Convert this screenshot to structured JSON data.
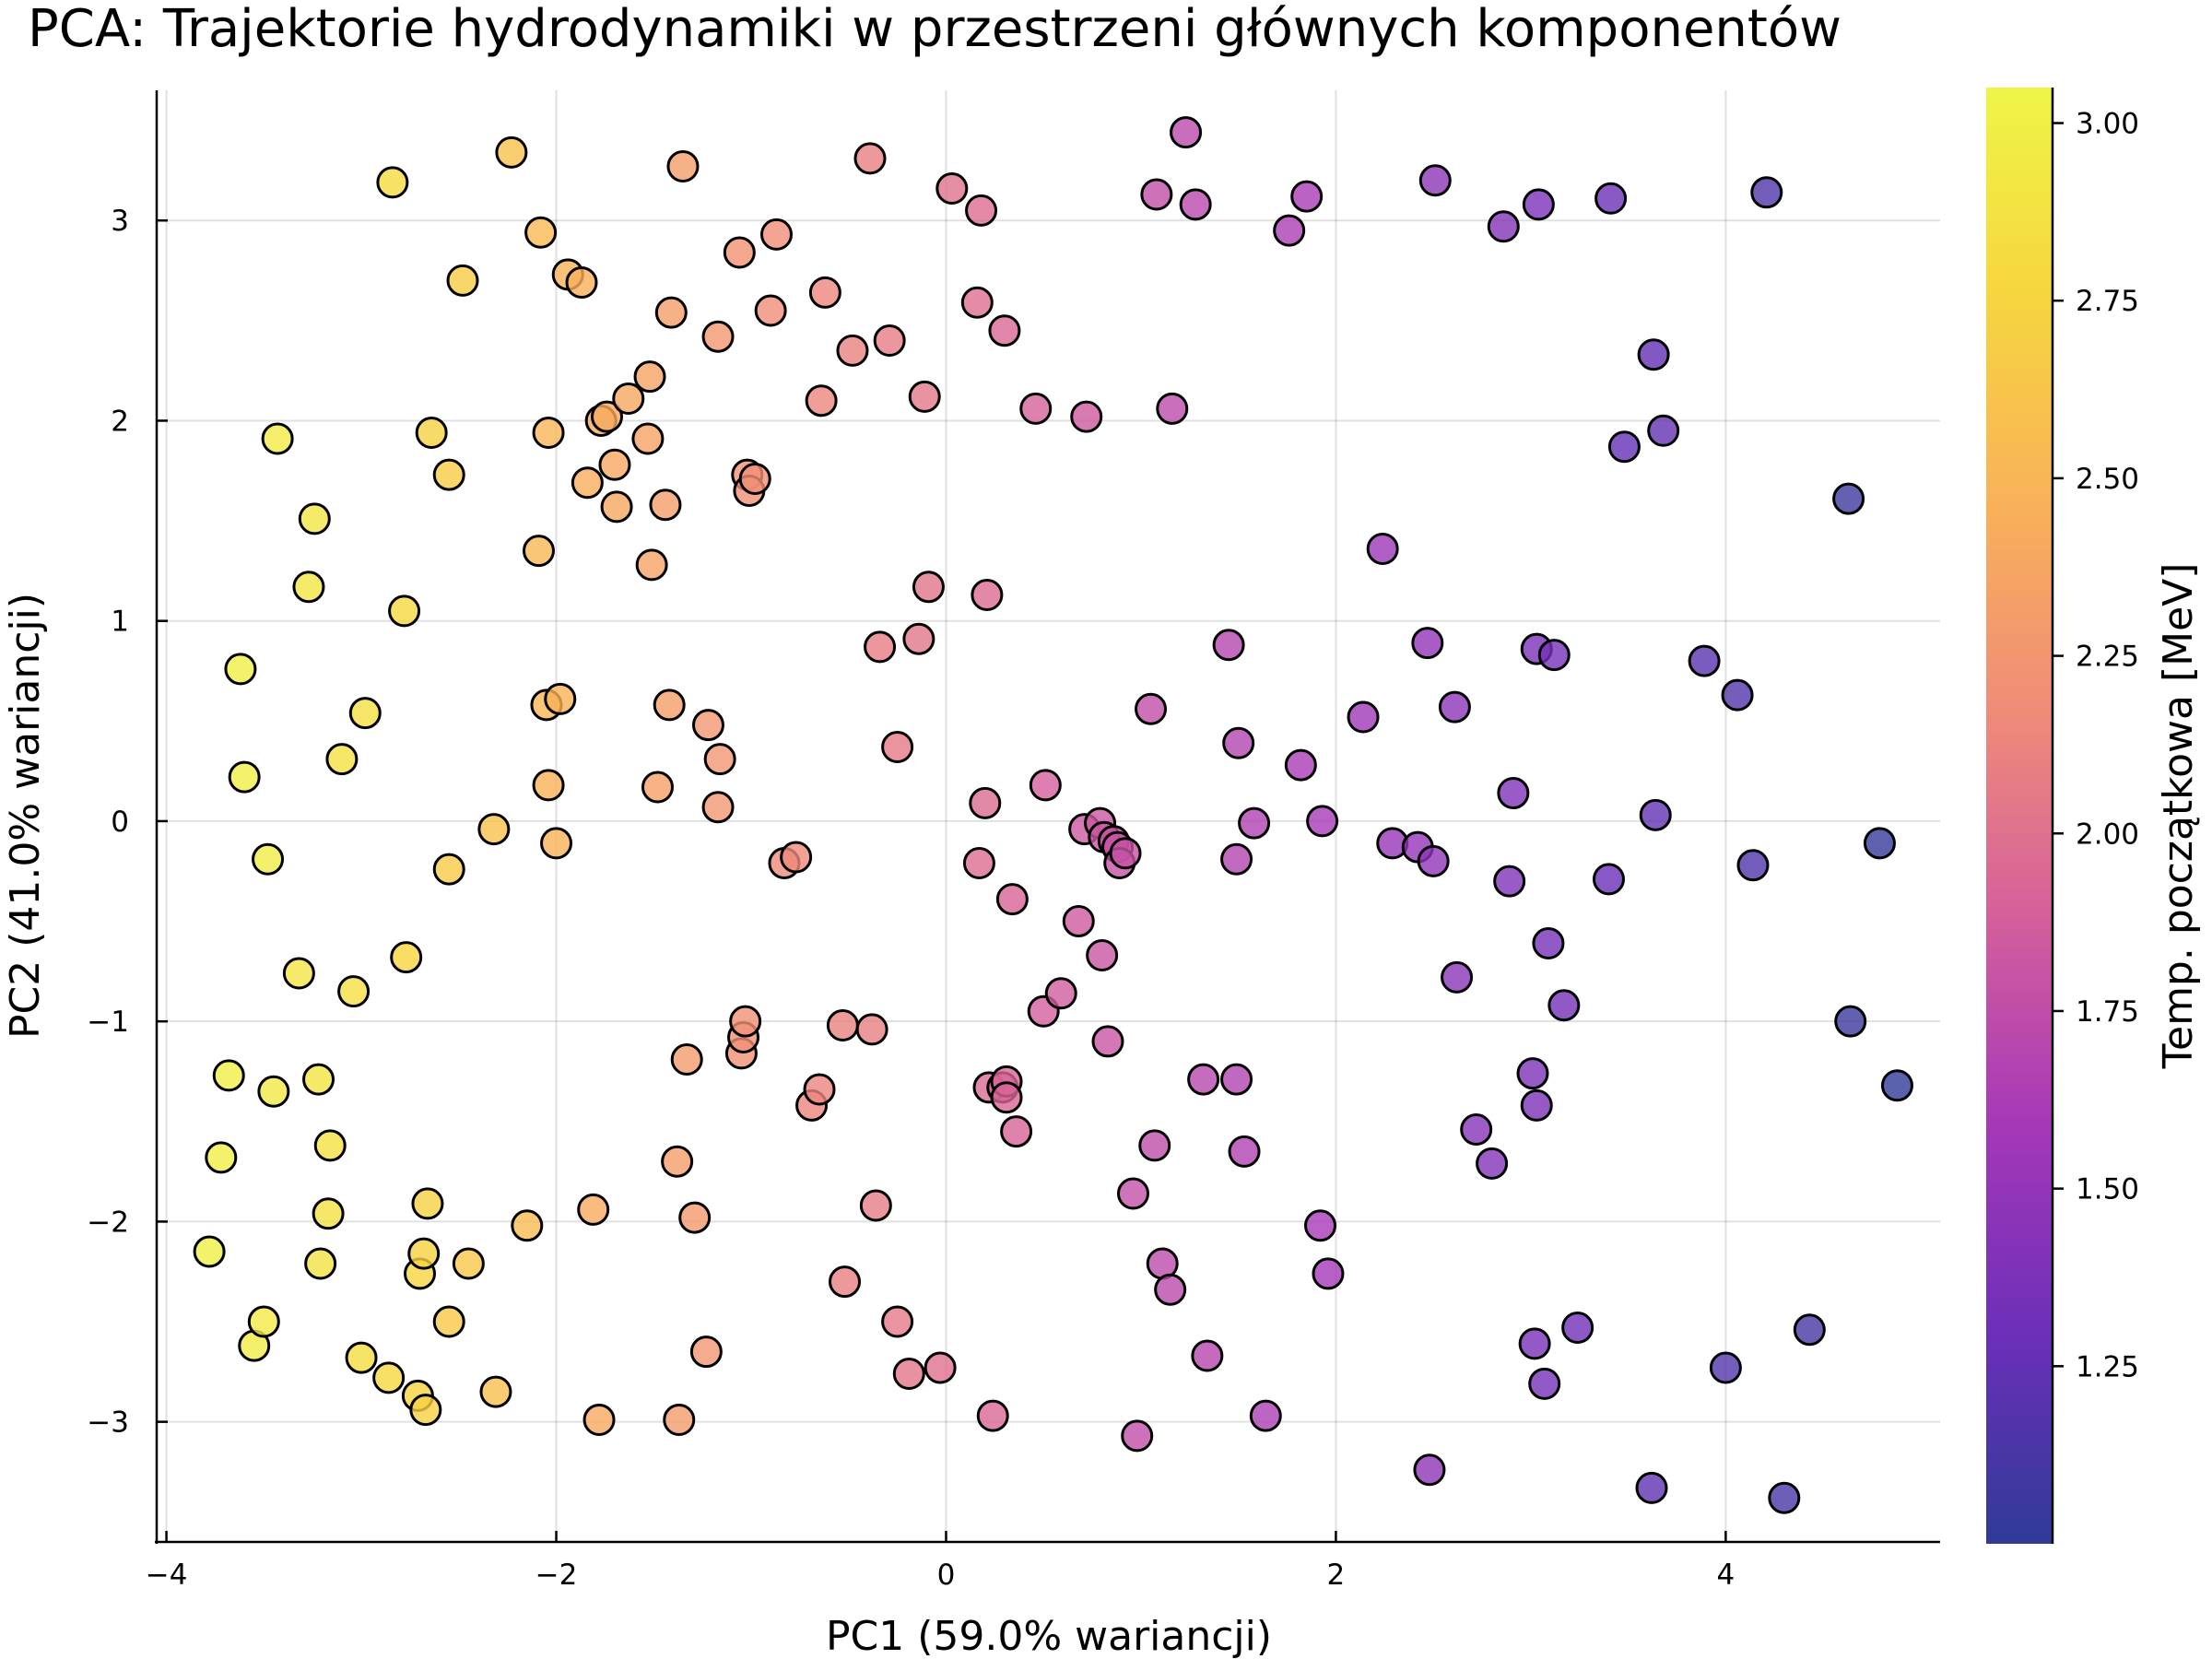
{
  "chart_data": {
    "type": "scatter",
    "title": "PCA: Trajektorie hydrodynamiki w przestrzeni głównych komponentów",
    "xlabel": "PC1 (59.0% wariancji)",
    "ylabel": "PC2 (41.0% wariancji)",
    "xlim": [
      -4.05,
      5.1
    ],
    "ylim": [
      -3.6,
      3.65
    ],
    "xticks": [
      -4,
      -2,
      0,
      2,
      4
    ],
    "yticks": [
      -3,
      -2,
      -1,
      0,
      1,
      2,
      3
    ],
    "grid": true,
    "colorbar": {
      "label": "Temp. początkowa [MeV]",
      "range": [
        1.0,
        3.05
      ],
      "ticks": [
        1.25,
        1.5,
        1.75,
        2.0,
        2.25,
        2.5,
        2.75,
        3.0
      ],
      "colormap": "plasma",
      "colors": [
        "#2f3b97",
        "#6a2fb8",
        "#a638b8",
        "#d45f9c",
        "#ef8b79",
        "#f9b05a",
        "#f6d63e",
        "#eff548"
      ]
    },
    "points": [
      [
        -3.78,
        -2.15,
        2.99
      ],
      [
        -3.72,
        -1.68,
        2.98
      ],
      [
        -3.68,
        -1.27,
        2.97
      ],
      [
        -3.62,
        0.76,
        2.98
      ],
      [
        -3.6,
        0.22,
        2.98
      ],
      [
        -3.55,
        -2.62,
        2.96
      ],
      [
        -3.5,
        -2.5,
        2.95
      ],
      [
        -3.48,
        -0.19,
        2.96
      ],
      [
        -3.45,
        -1.35,
        2.94
      ],
      [
        -3.43,
        1.91,
        2.95
      ],
      [
        -3.32,
        -0.76,
        2.9
      ],
      [
        -3.27,
        1.17,
        2.91
      ],
      [
        -3.24,
        1.51,
        2.9
      ],
      [
        -3.22,
        -1.29,
        2.88
      ],
      [
        -3.21,
        -2.21,
        2.87
      ],
      [
        -3.17,
        -1.96,
        2.86
      ],
      [
        -3.16,
        -1.62,
        2.86
      ],
      [
        -3.1,
        0.31,
        2.86
      ],
      [
        -3.04,
        -0.85,
        2.84
      ],
      [
        -3.0,
        -2.68,
        2.82
      ],
      [
        -2.98,
        0.54,
        2.83
      ],
      [
        -2.86,
        -2.78,
        2.78
      ],
      [
        -2.84,
        3.19,
        2.8
      ],
      [
        -2.78,
        1.05,
        2.77
      ],
      [
        -2.77,
        -0.68,
        2.76
      ],
      [
        -2.71,
        -2.87,
        2.75
      ],
      [
        -2.7,
        -2.26,
        2.74
      ],
      [
        -2.68,
        -2.16,
        2.73
      ],
      [
        -2.67,
        -2.94,
        2.72
      ],
      [
        -2.66,
        -1.91,
        2.72
      ],
      [
        -2.64,
        1.94,
        2.72
      ],
      [
        -2.55,
        1.73,
        2.68
      ],
      [
        -2.55,
        -0.24,
        2.67
      ],
      [
        -2.55,
        -2.5,
        2.66
      ],
      [
        -2.48,
        2.7,
        2.68
      ],
      [
        -2.45,
        -2.21,
        2.64
      ],
      [
        -2.32,
        -0.04,
        2.6
      ],
      [
        -2.31,
        -2.85,
        2.58
      ],
      [
        -2.23,
        3.34,
        2.6
      ],
      [
        -2.15,
        -2.02,
        2.55
      ],
      [
        -2.09,
        1.35,
        2.52
      ],
      [
        -2.08,
        2.94,
        2.53
      ],
      [
        -2.05,
        0.58,
        2.5
      ],
      [
        -2.04,
        1.94,
        2.5
      ],
      [
        -2.04,
        0.18,
        2.49
      ],
      [
        -2.0,
        -0.11,
        2.48
      ],
      [
        -1.98,
        0.61,
        2.48
      ],
      [
        -1.94,
        2.73,
        2.48
      ],
      [
        -1.87,
        2.69,
        2.46
      ],
      [
        -1.84,
        1.69,
        2.44
      ],
      [
        -1.81,
        -1.94,
        2.42
      ],
      [
        -1.78,
        -2.99,
        2.41
      ],
      [
        -1.77,
        2.0,
        2.42
      ],
      [
        -1.74,
        2.02,
        2.42
      ],
      [
        -1.7,
        1.78,
        2.4
      ],
      [
        -1.69,
        1.57,
        2.39
      ],
      [
        -1.63,
        2.11,
        2.39
      ],
      [
        -1.53,
        1.91,
        2.36
      ],
      [
        -1.52,
        2.22,
        2.36
      ],
      [
        -1.51,
        1.28,
        2.35
      ],
      [
        -1.48,
        0.17,
        2.34
      ],
      [
        -1.44,
        1.58,
        2.33
      ],
      [
        -1.42,
        0.58,
        2.32
      ],
      [
        -1.41,
        2.54,
        2.33
      ],
      [
        -1.38,
        -1.7,
        2.31
      ],
      [
        -1.37,
        -2.99,
        2.3
      ],
      [
        -1.35,
        3.27,
        2.32
      ],
      [
        -1.33,
        -1.19,
        2.3
      ],
      [
        -1.29,
        -1.98,
        2.29
      ],
      [
        -1.23,
        -2.65,
        2.26
      ],
      [
        -1.22,
        0.48,
        2.27
      ],
      [
        -1.17,
        2.42,
        2.27
      ],
      [
        -1.17,
        0.07,
        2.26
      ],
      [
        -1.16,
        0.31,
        2.26
      ],
      [
        -1.06,
        2.84,
        2.24
      ],
      [
        -1.05,
        -1.16,
        2.22
      ],
      [
        -1.04,
        -1.08,
        2.22
      ],
      [
        -1.03,
        -1.0,
        2.22
      ],
      [
        -1.02,
        1.73,
        2.22
      ],
      [
        -1.01,
        1.65,
        2.21
      ],
      [
        -0.98,
        1.71,
        2.21
      ],
      [
        -0.9,
        2.55,
        2.19
      ],
      [
        -0.87,
        2.93,
        2.19
      ],
      [
        -0.83,
        -0.21,
        2.17
      ],
      [
        -0.77,
        -0.18,
        2.16
      ],
      [
        -0.69,
        -1.42,
        2.14
      ],
      [
        -0.65,
        -1.34,
        2.13
      ],
      [
        -0.64,
        2.1,
        2.14
      ],
      [
        -0.62,
        2.64,
        2.14
      ],
      [
        -0.53,
        -1.02,
        2.11
      ],
      [
        -0.52,
        -2.3,
        2.1
      ],
      [
        -0.48,
        2.35,
        2.11
      ],
      [
        -0.39,
        3.31,
        2.1
      ],
      [
        -0.38,
        -1.04,
        2.09
      ],
      [
        -0.36,
        -1.92,
        2.08
      ],
      [
        -0.34,
        0.87,
        2.08
      ],
      [
        -0.29,
        2.4,
        2.08
      ],
      [
        -0.25,
        0.37,
        2.06
      ],
      [
        -0.25,
        -2.5,
        2.05
      ],
      [
        -0.19,
        -2.76,
        2.03
      ],
      [
        -0.14,
        0.91,
        2.03
      ],
      [
        -0.11,
        2.12,
        2.04
      ],
      [
        -0.09,
        1.17,
        2.02
      ],
      [
        -0.03,
        -2.73,
        2.0
      ],
      [
        0.03,
        3.16,
        2.01
      ],
      [
        0.16,
        2.59,
        1.98
      ],
      [
        0.17,
        -0.21,
        1.97
      ],
      [
        0.18,
        3.05,
        1.97
      ],
      [
        0.2,
        0.09,
        1.96
      ],
      [
        0.21,
        1.13,
        1.96
      ],
      [
        0.22,
        -1.33,
        1.95
      ],
      [
        0.24,
        -2.97,
        1.94
      ],
      [
        0.29,
        -1.33,
        1.93
      ],
      [
        0.3,
        2.45,
        1.93
      ],
      [
        0.31,
        -1.3,
        1.92
      ],
      [
        0.31,
        -1.38,
        1.92
      ],
      [
        0.34,
        -0.39,
        1.91
      ],
      [
        0.36,
        -1.55,
        1.91
      ],
      [
        0.46,
        2.06,
        1.89
      ],
      [
        0.5,
        -0.95,
        1.88
      ],
      [
        0.51,
        0.18,
        1.88
      ],
      [
        0.59,
        -0.86,
        1.86
      ],
      [
        0.68,
        -0.5,
        1.84
      ],
      [
        0.71,
        -0.04,
        1.83
      ],
      [
        0.72,
        2.02,
        1.84
      ],
      [
        0.79,
        -0.01,
        1.82
      ],
      [
        0.8,
        -0.67,
        1.81
      ],
      [
        0.81,
        -0.08,
        1.81
      ],
      [
        0.83,
        -1.1,
        1.8
      ],
      [
        0.86,
        -0.1,
        1.8
      ],
      [
        0.88,
        -0.13,
        1.79
      ],
      [
        0.89,
        -0.21,
        1.79
      ],
      [
        0.92,
        -0.16,
        1.78
      ],
      [
        0.96,
        -1.86,
        1.77
      ],
      [
        0.98,
        -3.07,
        1.76
      ],
      [
        1.05,
        0.56,
        1.76
      ],
      [
        1.07,
        -1.62,
        1.74
      ],
      [
        1.08,
        3.13,
        1.75
      ],
      [
        1.11,
        -2.21,
        1.73
      ],
      [
        1.15,
        -2.34,
        1.72
      ],
      [
        1.16,
        2.06,
        1.73
      ],
      [
        1.23,
        3.44,
        1.72
      ],
      [
        1.28,
        3.08,
        1.71
      ],
      [
        1.32,
        -1.29,
        1.7
      ],
      [
        1.34,
        -2.67,
        1.69
      ],
      [
        1.45,
        0.88,
        1.68
      ],
      [
        1.49,
        -0.19,
        1.67
      ],
      [
        1.49,
        -1.29,
        1.66
      ],
      [
        1.5,
        0.39,
        1.67
      ],
      [
        1.53,
        -1.65,
        1.65
      ],
      [
        1.58,
        -0.01,
        1.65
      ],
      [
        1.64,
        -2.97,
        1.63
      ],
      [
        1.76,
        2.95,
        1.63
      ],
      [
        1.82,
        0.28,
        1.61
      ],
      [
        1.85,
        3.12,
        1.61
      ],
      [
        1.92,
        -2.02,
        1.59
      ],
      [
        1.93,
        0.0,
        1.59
      ],
      [
        1.96,
        -2.26,
        1.58
      ],
      [
        2.14,
        0.52,
        1.55
      ],
      [
        2.24,
        1.36,
        1.53
      ],
      [
        2.29,
        -0.11,
        1.52
      ],
      [
        2.42,
        -0.13,
        1.5
      ],
      [
        2.47,
        0.89,
        1.49
      ],
      [
        2.48,
        -3.24,
        1.47
      ],
      [
        2.5,
        -0.2,
        1.48
      ],
      [
        2.51,
        3.2,
        1.47
      ],
      [
        2.61,
        0.57,
        1.46
      ],
      [
        2.62,
        -0.78,
        1.45
      ],
      [
        2.72,
        -1.54,
        1.43
      ],
      [
        2.8,
        -1.71,
        1.41
      ],
      [
        2.86,
        2.97,
        1.41
      ],
      [
        2.89,
        -0.3,
        1.4
      ],
      [
        2.91,
        0.14,
        1.4
      ],
      [
        3.01,
        -1.26,
        1.38
      ],
      [
        3.02,
        -2.61,
        1.36
      ],
      [
        3.03,
        0.86,
        1.37
      ],
      [
        3.03,
        -1.42,
        1.37
      ],
      [
        3.04,
        3.08,
        1.37
      ],
      [
        3.07,
        -2.81,
        1.35
      ],
      [
        3.09,
        -0.61,
        1.35
      ],
      [
        3.12,
        0.83,
        1.35
      ],
      [
        3.17,
        -0.92,
        1.34
      ],
      [
        3.24,
        -2.53,
        1.32
      ],
      [
        3.4,
        -0.29,
        1.29
      ],
      [
        3.41,
        3.11,
        1.3
      ],
      [
        3.48,
        1.87,
        1.28
      ],
      [
        3.62,
        -3.33,
        1.24
      ],
      [
        3.63,
        2.33,
        1.26
      ],
      [
        3.64,
        0.03,
        1.25
      ],
      [
        3.68,
        1.95,
        1.25
      ],
      [
        3.89,
        0.8,
        1.21
      ],
      [
        4.0,
        -2.73,
        1.18
      ],
      [
        4.06,
        0.63,
        1.18
      ],
      [
        4.14,
        -0.22,
        1.16
      ],
      [
        4.21,
        3.14,
        1.16
      ],
      [
        4.3,
        -3.38,
        1.13
      ],
      [
        4.43,
        -2.54,
        1.11
      ],
      [
        4.63,
        1.61,
        1.07
      ],
      [
        4.64,
        -1.0,
        1.06
      ],
      [
        4.79,
        -0.11,
        1.03
      ],
      [
        4.88,
        -1.32,
        1.01
      ]
    ]
  }
}
